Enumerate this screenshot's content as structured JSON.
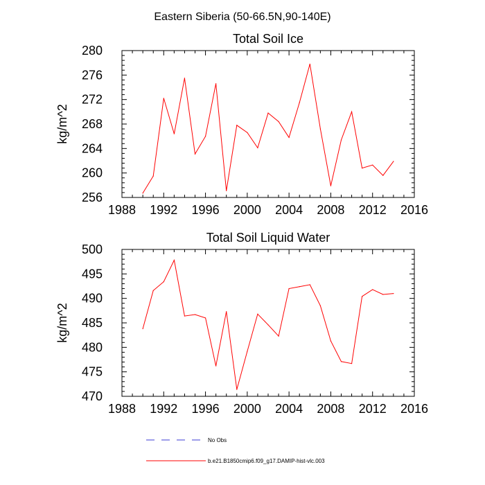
{
  "figure_title": "Eastern Siberia (50-66.5N,90-140E)",
  "legend": {
    "entries": [
      {
        "label": "No Obs",
        "color": "#3b3bd6",
        "style": "dashed"
      },
      {
        "label": "b.e21.B1850cmip6.f09_g17.DAMIP-hist-vlc.003",
        "color": "#ff0000",
        "style": "solid"
      }
    ]
  },
  "chart_data": [
    {
      "type": "line",
      "title": "Total Soil Ice",
      "xlabel": "",
      "ylabel": "kg/m^2",
      "xlim": [
        1988,
        2016
      ],
      "ylim": [
        256,
        280
      ],
      "xticks": [
        1988,
        1992,
        1996,
        2000,
        2004,
        2008,
        2012,
        2016
      ],
      "yticks": [
        256,
        260,
        264,
        268,
        272,
        276,
        280
      ],
      "grid": false,
      "x": [
        1990,
        1991,
        1992,
        1993,
        1994,
        1995,
        1996,
        1997,
        1998,
        1999,
        2000,
        2001,
        2002,
        2003,
        2004,
        2005,
        2006,
        2007,
        2008,
        2009,
        2010,
        2011,
        2012,
        2013,
        2014
      ],
      "series": [
        {
          "name": "b.e21.B1850cmip6.f09_g17.DAMIP-hist-vlc.003",
          "color": "#ff0000",
          "values": [
            256.7,
            259.5,
            272.2,
            266.4,
            275.5,
            263.1,
            266.0,
            274.6,
            257.1,
            267.8,
            266.6,
            264.1,
            269.8,
            268.4,
            265.8,
            271.5,
            277.8,
            267.2,
            257.9,
            265.4,
            270.0,
            260.8,
            261.3,
            259.6,
            261.9
          ]
        }
      ]
    },
    {
      "type": "line",
      "title": "Total Soil Liquid Water",
      "xlabel": "",
      "ylabel": "kg/m^2",
      "xlim": [
        1988,
        2016
      ],
      "ylim": [
        470,
        500
      ],
      "xticks": [
        1988,
        1992,
        1996,
        2000,
        2004,
        2008,
        2012,
        2016
      ],
      "yticks": [
        470,
        475,
        480,
        485,
        490,
        495,
        500
      ],
      "grid": false,
      "x": [
        1990,
        1991,
        1992,
        1993,
        1994,
        1995,
        1996,
        1997,
        1998,
        1999,
        2000,
        2001,
        2002,
        2003,
        2004,
        2005,
        2006,
        2007,
        2008,
        2009,
        2010,
        2011,
        2012,
        2013,
        2014
      ],
      "series": [
        {
          "name": "b.e21.B1850cmip6.f09_g17.DAMIP-hist-vlc.003",
          "color": "#ff0000",
          "values": [
            483.8,
            491.6,
            493.4,
            497.8,
            486.4,
            486.7,
            486.0,
            476.2,
            487.3,
            471.4,
            479.2,
            486.8,
            484.6,
            482.3,
            492.0,
            492.4,
            492.8,
            488.5,
            481.3,
            477.1,
            476.7,
            490.4,
            491.8,
            490.8,
            491.0
          ]
        }
      ]
    }
  ]
}
